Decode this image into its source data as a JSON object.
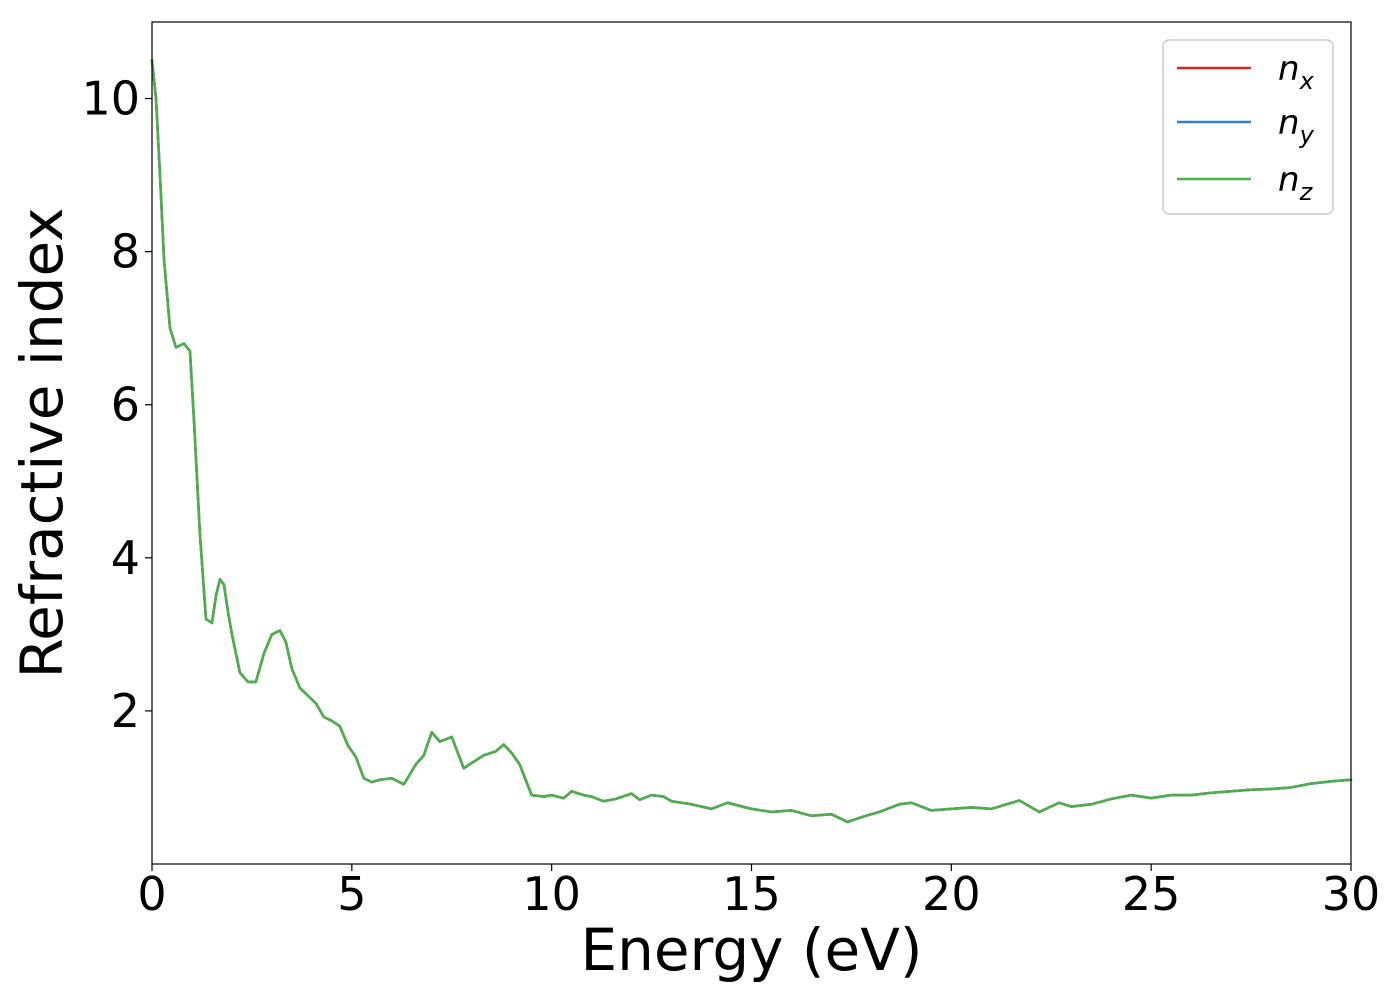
{
  "chart_data": {
    "type": "line",
    "xlabel": "Energy (eV)",
    "ylabel": "Refractive index",
    "xlim": [
      0,
      30
    ],
    "ylim": [
      0,
      11
    ],
    "xticks": [
      0,
      5,
      10,
      15,
      20,
      25,
      30
    ],
    "xtick_labels": [
      "0",
      "5",
      "10",
      "15",
      "20",
      "25",
      "30"
    ],
    "yticks": [
      2,
      4,
      6,
      8,
      10
    ],
    "ytick_labels": [
      "2",
      "4",
      "6",
      "8",
      "10"
    ],
    "grid": false,
    "legend_position": "top-right",
    "x": [
      0,
      0.1,
      0.2,
      0.3,
      0.45,
      0.6,
      0.8,
      0.95,
      1.05,
      1.2,
      1.35,
      1.5,
      1.6,
      1.7,
      1.8,
      1.9,
      2.0,
      2.2,
      2.4,
      2.6,
      2.8,
      3.0,
      3.2,
      3.35,
      3.5,
      3.7,
      3.9,
      4.1,
      4.3,
      4.5,
      4.7,
      4.9,
      5.1,
      5.3,
      5.5,
      5.7,
      6.0,
      6.3,
      6.6,
      6.8,
      7.0,
      7.2,
      7.5,
      7.8,
      8.0,
      8.3,
      8.6,
      8.8,
      9.0,
      9.2,
      9.5,
      9.8,
      10.0,
      10.3,
      10.5,
      10.8,
      11.0,
      11.3,
      11.6,
      12.0,
      12.2,
      12.5,
      12.8,
      13.0,
      13.5,
      14.0,
      14.4,
      15.0,
      15.5,
      16.0,
      16.5,
      17.0,
      17.4,
      17.8,
      18.2,
      18.7,
      19.0,
      19.5,
      20.0,
      20.5,
      21.0,
      21.7,
      22.2,
      22.7,
      23.0,
      23.5,
      24.0,
      24.5,
      25.0,
      25.5,
      26.0,
      26.5,
      27.0,
      27.5,
      28.0,
      28.5,
      29.0,
      29.5,
      30.0
    ],
    "series": [
      {
        "name": "n_x",
        "label_base": "n",
        "label_sub": "x",
        "color": "#d62728",
        "values": [
          10.5,
          10.0,
          9.0,
          7.9,
          7.0,
          6.75,
          6.8,
          6.7,
          5.8,
          4.3,
          3.2,
          3.15,
          3.5,
          3.72,
          3.65,
          3.3,
          3.0,
          2.5,
          2.38,
          2.38,
          2.75,
          3.0,
          3.05,
          2.9,
          2.55,
          2.3,
          2.2,
          2.1,
          1.92,
          1.87,
          1.8,
          1.55,
          1.4,
          1.12,
          1.07,
          1.1,
          1.12,
          1.04,
          1.3,
          1.42,
          1.72,
          1.6,
          1.66,
          1.25,
          1.32,
          1.42,
          1.47,
          1.56,
          1.45,
          1.3,
          0.9,
          0.88,
          0.9,
          0.86,
          0.95,
          0.9,
          0.88,
          0.82,
          0.85,
          0.92,
          0.84,
          0.9,
          0.88,
          0.82,
          0.78,
          0.72,
          0.8,
          0.72,
          0.68,
          0.7,
          0.63,
          0.65,
          0.55,
          0.62,
          0.68,
          0.78,
          0.8,
          0.7,
          0.72,
          0.74,
          0.72,
          0.83,
          0.68,
          0.8,
          0.75,
          0.78,
          0.85,
          0.9,
          0.86,
          0.9,
          0.9,
          0.93,
          0.95,
          0.97,
          0.98,
          1.0,
          1.05,
          1.08,
          1.1
        ]
      },
      {
        "name": "n_y",
        "label_base": "n",
        "label_sub": "y",
        "color": "#377eb8",
        "values": [
          10.5,
          10.0,
          9.0,
          7.9,
          7.0,
          6.75,
          6.8,
          6.7,
          5.8,
          4.3,
          3.2,
          3.15,
          3.5,
          3.72,
          3.65,
          3.3,
          3.0,
          2.5,
          2.38,
          2.38,
          2.75,
          3.0,
          3.05,
          2.9,
          2.55,
          2.3,
          2.2,
          2.1,
          1.92,
          1.87,
          1.8,
          1.55,
          1.4,
          1.12,
          1.07,
          1.1,
          1.12,
          1.04,
          1.3,
          1.42,
          1.72,
          1.6,
          1.66,
          1.25,
          1.32,
          1.42,
          1.47,
          1.56,
          1.45,
          1.3,
          0.9,
          0.88,
          0.9,
          0.86,
          0.95,
          0.9,
          0.88,
          0.82,
          0.85,
          0.92,
          0.84,
          0.9,
          0.88,
          0.82,
          0.78,
          0.72,
          0.8,
          0.72,
          0.68,
          0.7,
          0.63,
          0.65,
          0.55,
          0.62,
          0.68,
          0.78,
          0.8,
          0.7,
          0.72,
          0.74,
          0.72,
          0.83,
          0.68,
          0.8,
          0.75,
          0.78,
          0.85,
          0.9,
          0.86,
          0.9,
          0.9,
          0.93,
          0.95,
          0.97,
          0.98,
          1.0,
          1.05,
          1.08,
          1.1
        ]
      },
      {
        "name": "n_z",
        "label_base": "n",
        "label_sub": "z",
        "color": "#4daf4a",
        "values": [
          10.5,
          10.0,
          9.0,
          7.9,
          7.0,
          6.75,
          6.8,
          6.7,
          5.8,
          4.3,
          3.2,
          3.15,
          3.5,
          3.72,
          3.65,
          3.3,
          3.0,
          2.5,
          2.38,
          2.38,
          2.75,
          3.0,
          3.05,
          2.9,
          2.55,
          2.3,
          2.2,
          2.1,
          1.92,
          1.87,
          1.8,
          1.55,
          1.4,
          1.12,
          1.07,
          1.1,
          1.12,
          1.04,
          1.3,
          1.42,
          1.72,
          1.6,
          1.66,
          1.25,
          1.32,
          1.42,
          1.47,
          1.56,
          1.45,
          1.3,
          0.9,
          0.88,
          0.9,
          0.86,
          0.95,
          0.9,
          0.88,
          0.82,
          0.85,
          0.92,
          0.84,
          0.9,
          0.88,
          0.82,
          0.78,
          0.72,
          0.8,
          0.72,
          0.68,
          0.7,
          0.63,
          0.65,
          0.55,
          0.62,
          0.68,
          0.78,
          0.8,
          0.7,
          0.72,
          0.74,
          0.72,
          0.83,
          0.68,
          0.8,
          0.75,
          0.78,
          0.85,
          0.9,
          0.86,
          0.9,
          0.9,
          0.93,
          0.95,
          0.97,
          0.98,
          1.0,
          1.05,
          1.08,
          1.1
        ]
      }
    ]
  }
}
